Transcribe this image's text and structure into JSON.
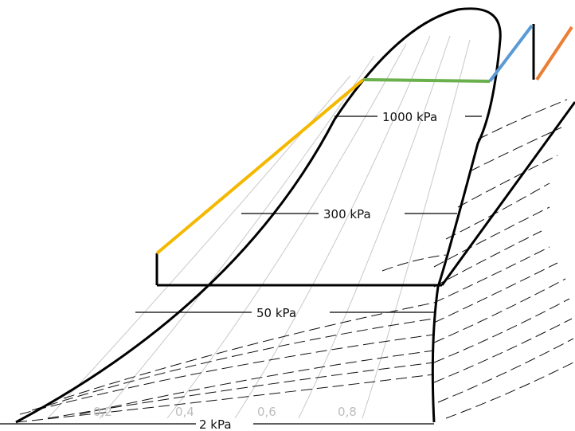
{
  "isobar_labels": [
    "1000 kPa",
    "300 kPa",
    "50 kPa",
    "2 kPa"
  ],
  "quality_labels": [
    "0,2",
    "0,4",
    "0,6",
    "0,8"
  ],
  "process_colors": {
    "heating_liquid": "#f5b800",
    "evaporation": "#6ab04c",
    "superheat": "#5b9bd5",
    "reheat": "#ed7d31",
    "outline": "#000000"
  }
}
